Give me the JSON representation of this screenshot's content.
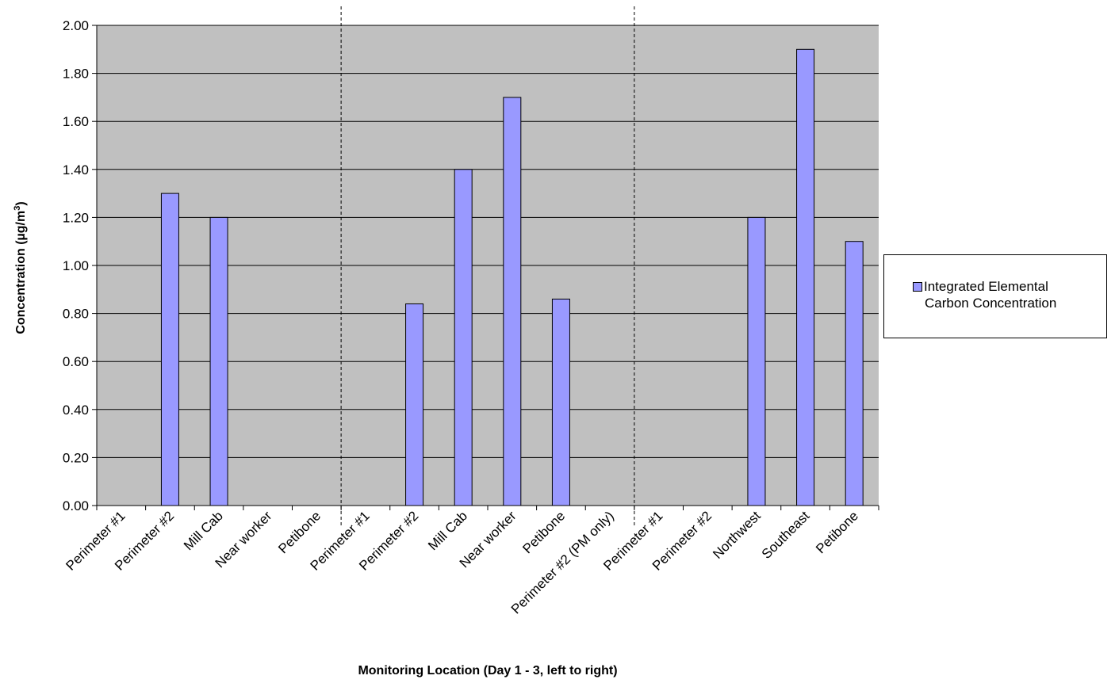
{
  "chart_data": {
    "type": "bar",
    "title": "",
    "xlabel": "Monitoring Location (Day 1 - 3, left to right)",
    "ylabel_main": "Concentration (µg/m",
    "ylabel_sup": "3",
    "ylabel_close": ")",
    "ylim": [
      0,
      2
    ],
    "ytick_step": 0.2,
    "yticks": [
      "0.00",
      "0.20",
      "0.40",
      "0.60",
      "0.80",
      "1.00",
      "1.20",
      "1.40",
      "1.60",
      "1.80",
      "2.00"
    ],
    "grid": true,
    "legend_position": "right",
    "categories": [
      "Perimeter #1",
      "Perimeter #2",
      "Mill Cab",
      "Near worker",
      "Petibone",
      "Perimeter #1",
      "Perimeter #2",
      "Mill Cab",
      "Near worker",
      "Petibone",
      "Perimeter #2 (PM only)",
      "Perimeter #1",
      "Perimeter #2",
      "Northwest",
      "Southeast",
      "Petibone"
    ],
    "day_groups": [
      5,
      6,
      5
    ],
    "series": [
      {
        "name_line1": "Integrated Elemental",
        "name_line2": "Carbon Concentration",
        "values": [
          null,
          1.3,
          1.2,
          null,
          null,
          null,
          0.84,
          1.4,
          1.7,
          0.86,
          null,
          null,
          null,
          1.2,
          1.9,
          1.1
        ]
      }
    ],
    "colors": {
      "plot_background": "#c0c0c0",
      "bar_fill": "#9999ff",
      "bar_stroke": "#000000",
      "gridline": "#000000"
    }
  }
}
